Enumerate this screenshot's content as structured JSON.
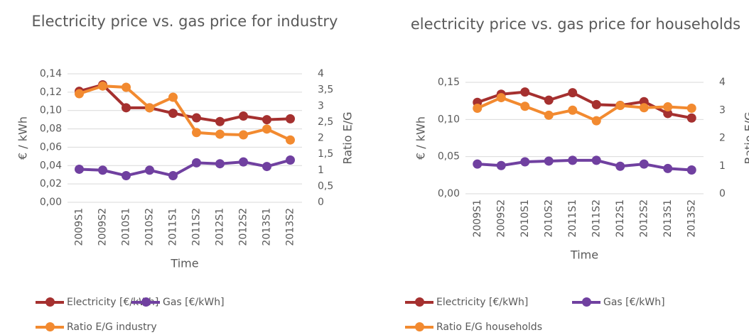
{
  "chart_data": [
    {
      "type": "line",
      "title": "Electricity price vs. gas price for industry",
      "x_label": "Time",
      "y_label": "€ / kWh",
      "y2_label": "Ratio E/G",
      "categories": [
        "2009S1",
        "2009S2",
        "2010S1",
        "2010S2",
        "2011S1",
        "2011S2",
        "2012S1",
        "2012S2",
        "2013S1",
        "2013S2"
      ],
      "ylim": [
        0,
        0.14
      ],
      "yticks": [
        {
          "value": 0,
          "label": "0,00"
        },
        {
          "value": 0.02,
          "label": "0,02"
        },
        {
          "value": 0.04,
          "label": "0,04"
        },
        {
          "value": 0.06,
          "label": "0,06"
        },
        {
          "value": 0.08,
          "label": "0,08"
        },
        {
          "value": 0.1,
          "label": "0,10"
        },
        {
          "value": 0.12,
          "label": "0,12"
        },
        {
          "value": 0.14,
          "label": "0,14"
        }
      ],
      "y2lim": [
        0,
        4
      ],
      "y2ticks": [
        0,
        {
          "value": 0.5,
          "label": "0,5"
        },
        1,
        {
          "value": 1.5,
          "label": "1,5"
        },
        2,
        {
          "value": 2.5,
          "label": "2,5"
        },
        3,
        {
          "value": 3.5,
          "label": "3,5"
        },
        4
      ],
      "grid": true,
      "series": [
        {
          "name": "Electricity [€/kWh]",
          "color": "#a5302f",
          "values": [
            0.121,
            0.128,
            0.103,
            0.103,
            0.097,
            0.092,
            0.088,
            0.094,
            0.09,
            0.091
          ]
        },
        {
          "name": "Gas [€/kWh]",
          "color": "#7040a0",
          "values": [
            0.036,
            0.035,
            0.029,
            0.035,
            0.029,
            0.043,
            0.042,
            0.044,
            0.039,
            0.046
          ]
        },
        {
          "name": "Ratio E/G industry",
          "color": "#f28a30",
          "axis": "y2",
          "values": [
            3.38,
            3.62,
            3.58,
            2.94,
            3.27,
            2.17,
            2.12,
            2.1,
            2.28,
            1.94
          ]
        }
      ]
    },
    {
      "type": "line",
      "title": "electricity price vs. gas price for households",
      "x_label": "Time",
      "y_label": "€ / kWh",
      "y2_label": "Ratio E/G",
      "categories": [
        "2009S1",
        "2009S2",
        "2010S1",
        "2010S2",
        "2011S1",
        "2011S2",
        "2012S1",
        "2012S2",
        "2013S1",
        "2013S2"
      ],
      "ylim": [
        0,
        0.15
      ],
      "yticks": [
        {
          "value": 0,
          "label": "0,00"
        },
        {
          "value": 0.05,
          "label": "0,05"
        },
        {
          "value": 0.1,
          "label": "0,10"
        },
        {
          "value": 0.15,
          "label": "0,15"
        }
      ],
      "y2lim": [
        0,
        4
      ],
      "y2ticks": [
        0,
        1,
        2,
        3,
        4
      ],
      "grid": true,
      "series": [
        {
          "name": "Electricity [€/kWh]",
          "color": "#a5302f",
          "values": [
            0.123,
            0.134,
            0.137,
            0.126,
            0.136,
            0.12,
            0.119,
            0.124,
            0.108,
            0.102
          ]
        },
        {
          "name": "Gas [€/kWh]",
          "color": "#7040a0",
          "values": [
            0.04,
            0.038,
            0.043,
            0.044,
            0.045,
            0.045,
            0.037,
            0.04,
            0.034,
            0.032
          ]
        },
        {
          "name": "Ratio E/G households",
          "color": "#f28a30",
          "axis": "y2",
          "values": [
            3.07,
            3.45,
            3.14,
            2.82,
            3.0,
            2.62,
            3.17,
            3.09,
            3.12,
            3.07
          ]
        }
      ]
    }
  ]
}
